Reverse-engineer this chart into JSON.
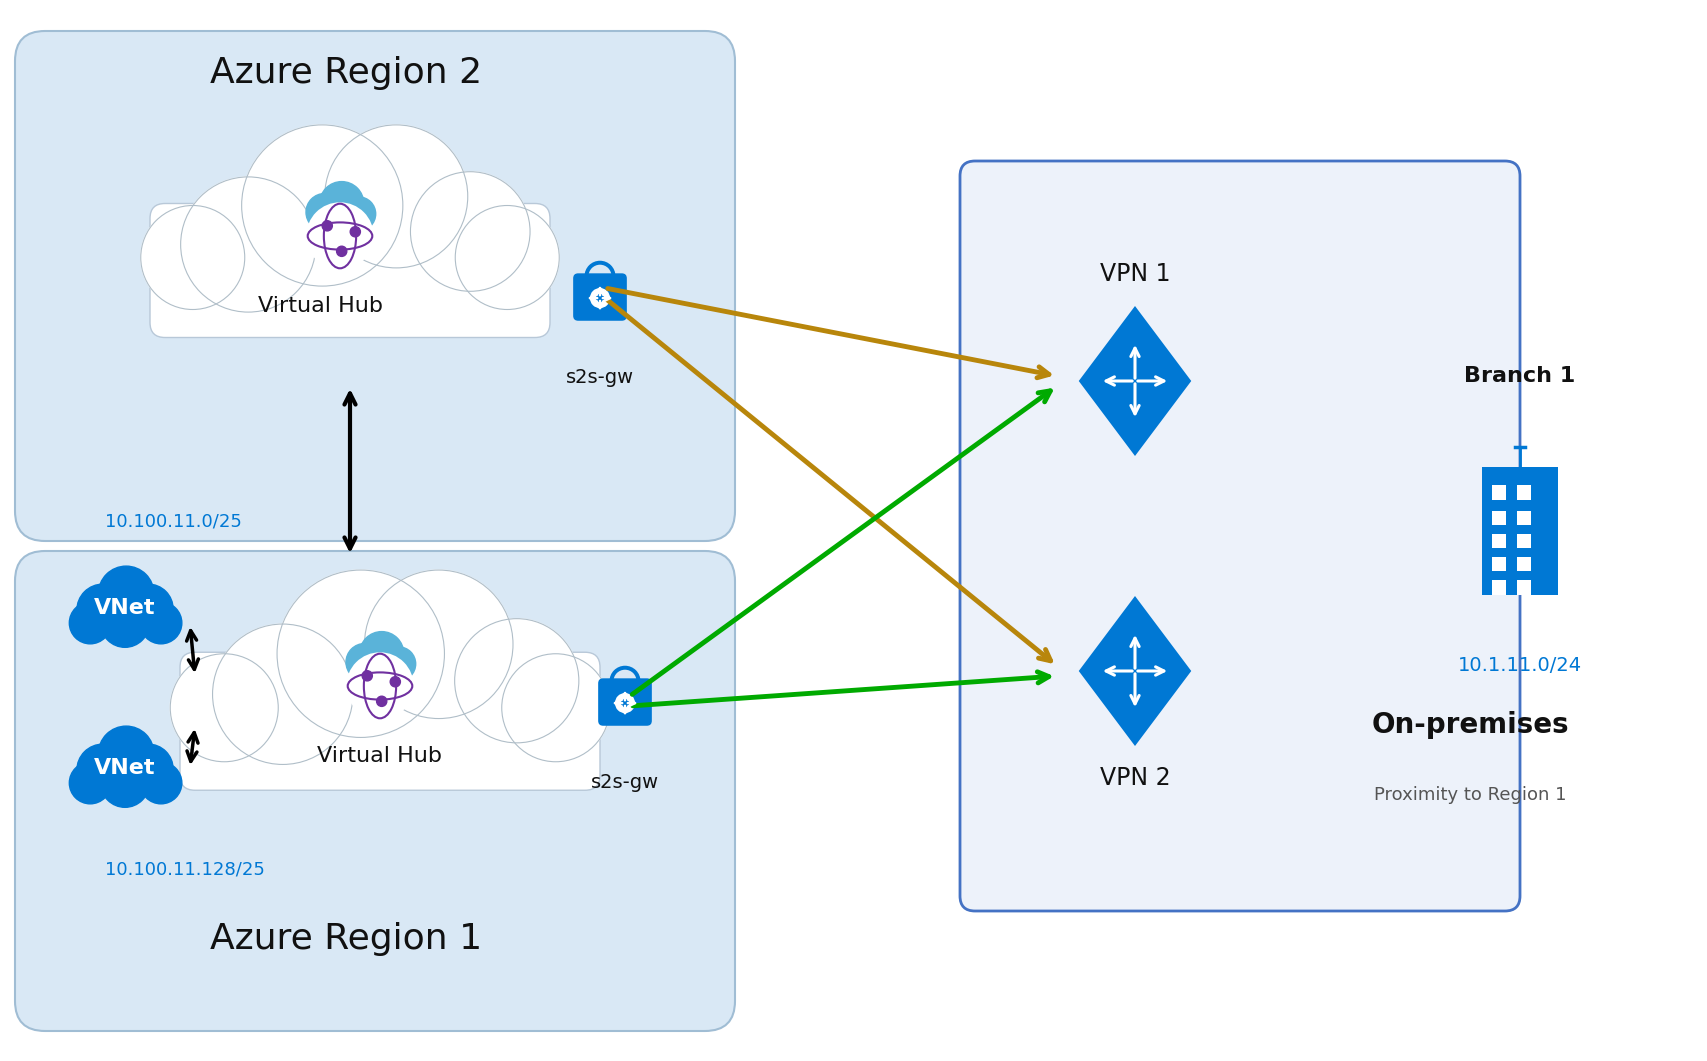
{
  "bg_color": "#ffffff",
  "region2_color": "#d9e8f5",
  "region1_color": "#d9e8f5",
  "branch_color": "#edf2fa",
  "region2_label": "Azure Region 2",
  "region1_label": "Azure Region 1",
  "branch_label": "Branch 1",
  "branch_ip": "10.1.11.0/24",
  "on_premises_label": "On-premises",
  "proximity_label": "Proximity to Region 1",
  "vnet1_ip": "10.100.11.0/25",
  "vnet2_ip": "10.100.11.128/25",
  "vpn1_label": "VPN 1",
  "vpn2_label": "VPN 2",
  "virtual_hub_label": "Virtual Hub",
  "s2s_gw_label": "s2s-gw",
  "azure_blue": "#0078d4",
  "vnet_blue": "#0078d4",
  "cloud_blue": "#5ab3d9",
  "hub_purple": "#7030a0",
  "arrow_dark_gold": "#b8860b",
  "arrow_green": "#00aa00",
  "arrow_black": "#000000",
  "region_edge_color": "#a0bdd4",
  "branch_edge_color": "#4472c4"
}
